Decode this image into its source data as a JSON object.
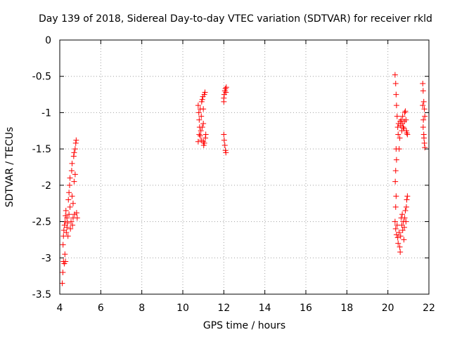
{
  "chart_data": {
    "type": "scatter",
    "title": "Day 139 of 2018, Sidereal Day-to-day VTEC variation (SDTVAR) for receiver rkld",
    "xlabel": "GPS time / hours",
    "ylabel": "SDTVAR / TECUs",
    "xlim": [
      4,
      22
    ],
    "ylim": [
      -3.5,
      0
    ],
    "xticks": [
      "4",
      "6",
      "8",
      "10",
      "12",
      "14",
      "16",
      "18",
      "20",
      "22"
    ],
    "yticks": [
      "0",
      "-0.5",
      "-1",
      "-1.5",
      "-2",
      "-2.5",
      "-3",
      "-3.5"
    ],
    "grid": true,
    "marker": "+",
    "colors": {
      "series": "#ff0000",
      "grid": "#a0a0a0",
      "axis": "#000000"
    },
    "series": [
      {
        "values": [
          [
            4.12,
            -3.35
          ],
          [
            4.15,
            -3.2
          ],
          [
            4.18,
            -3.05
          ],
          [
            4.22,
            -3.08
          ],
          [
            4.25,
            -2.95
          ],
          [
            4.16,
            -2.82
          ],
          [
            4.18,
            -2.7
          ],
          [
            4.2,
            -2.62
          ],
          [
            4.23,
            -2.55
          ],
          [
            4.26,
            -2.5
          ],
          [
            4.28,
            -2.42
          ],
          [
            4.3,
            -2.35
          ],
          [
            4.32,
            -2.65
          ],
          [
            4.35,
            -2.58
          ],
          [
            4.38,
            -2.52
          ],
          [
            4.4,
            -2.7
          ],
          [
            4.42,
            -2.2
          ],
          [
            4.45,
            -2.1
          ],
          [
            4.48,
            -2.0
          ],
          [
            4.5,
            -1.9
          ],
          [
            4.52,
            -2.6
          ],
          [
            4.55,
            -2.5
          ],
          [
            4.58,
            -1.8
          ],
          [
            4.6,
            -1.7
          ],
          [
            4.62,
            -2.55
          ],
          [
            4.65,
            -2.45
          ],
          [
            4.68,
            -1.6
          ],
          [
            4.7,
            -1.55
          ],
          [
            4.72,
            -2.4
          ],
          [
            4.75,
            -1.5
          ],
          [
            4.78,
            -1.42
          ],
          [
            4.8,
            -1.38
          ],
          [
            4.82,
            -2.38
          ],
          [
            4.85,
            -2.45
          ],
          [
            4.7,
            -1.95
          ],
          [
            4.75,
            -1.85
          ],
          [
            4.5,
            -2.3
          ],
          [
            4.45,
            -2.4
          ],
          [
            4.65,
            -2.25
          ],
          [
            4.6,
            -2.15
          ],
          [
            4.28,
            -3.05
          ],
          [
            4.35,
            -2.45
          ],
          [
            10.75,
            -0.9
          ],
          [
            10.78,
            -1.0
          ],
          [
            10.8,
            -1.1
          ],
          [
            10.82,
            -1.2
          ],
          [
            10.85,
            -1.32
          ],
          [
            10.9,
            -1.38
          ],
          [
            10.92,
            -0.85
          ],
          [
            10.95,
            -0.82
          ],
          [
            10.98,
            -0.78
          ],
          [
            11.0,
            -1.4
          ],
          [
            11.02,
            -1.45
          ],
          [
            11.05,
            -0.75
          ],
          [
            11.08,
            -0.72
          ],
          [
            11.1,
            -1.35
          ],
          [
            11.12,
            -1.3
          ],
          [
            10.88,
            -1.25
          ],
          [
            10.95,
            -1.2
          ],
          [
            11.0,
            -0.95
          ],
          [
            10.85,
            -0.95
          ],
          [
            10.8,
            -1.3
          ],
          [
            11.05,
            -1.42
          ],
          [
            10.9,
            -1.05
          ],
          [
            11.0,
            -1.15
          ],
          [
            10.75,
            -1.4
          ],
          [
            12.0,
            -1.3
          ],
          [
            12.02,
            -1.38
          ],
          [
            12.05,
            -1.45
          ],
          [
            12.08,
            -1.52
          ],
          [
            12.1,
            -1.55
          ],
          [
            12.0,
            -0.8
          ],
          [
            12.02,
            -0.75
          ],
          [
            12.05,
            -0.7
          ],
          [
            12.08,
            -0.67
          ],
          [
            12.1,
            -0.72
          ],
          [
            12.12,
            -0.65
          ],
          [
            12.0,
            -0.85
          ],
          [
            20.35,
            -0.48
          ],
          [
            20.38,
            -0.6
          ],
          [
            20.4,
            -0.75
          ],
          [
            20.42,
            -0.9
          ],
          [
            20.45,
            -1.05
          ],
          [
            20.48,
            -1.2
          ],
          [
            20.4,
            -1.5
          ],
          [
            20.42,
            -1.65
          ],
          [
            20.38,
            -1.8
          ],
          [
            20.36,
            -1.95
          ],
          [
            20.4,
            -2.15
          ],
          [
            20.38,
            -2.3
          ],
          [
            20.35,
            -2.5
          ],
          [
            20.38,
            -2.6
          ],
          [
            20.42,
            -2.68
          ],
          [
            20.45,
            -2.55
          ],
          [
            20.48,
            -2.72
          ],
          [
            20.5,
            -2.8
          ],
          [
            20.55,
            -2.65
          ],
          [
            20.58,
            -2.85
          ],
          [
            20.6,
            -2.92
          ],
          [
            20.62,
            -2.7
          ],
          [
            20.65,
            -2.45
          ],
          [
            20.68,
            -2.55
          ],
          [
            20.7,
            -2.4
          ],
          [
            20.72,
            -2.62
          ],
          [
            20.75,
            -2.5
          ],
          [
            20.78,
            -2.75
          ],
          [
            20.8,
            -2.58
          ],
          [
            20.82,
            -2.45
          ],
          [
            20.85,
            -2.35
          ],
          [
            20.88,
            -2.5
          ],
          [
            20.9,
            -2.3
          ],
          [
            20.92,
            -2.2
          ],
          [
            20.95,
            -2.15
          ],
          [
            20.6,
            -1.12
          ],
          [
            20.62,
            -1.18
          ],
          [
            20.65,
            -1.1
          ],
          [
            20.68,
            -1.25
          ],
          [
            20.7,
            -1.15
          ],
          [
            20.72,
            -1.05
          ],
          [
            20.75,
            -1.2
          ],
          [
            20.78,
            -1.22
          ],
          [
            20.8,
            -1.12
          ],
          [
            20.82,
            -1.0
          ],
          [
            20.85,
            -0.98
          ],
          [
            20.88,
            -1.1
          ],
          [
            20.9,
            -1.25
          ],
          [
            20.92,
            -1.28
          ],
          [
            20.95,
            -1.3
          ],
          [
            20.5,
            -1.3
          ],
          [
            20.52,
            -1.15
          ],
          [
            20.55,
            -1.5
          ],
          [
            20.58,
            -1.35
          ],
          [
            21.7,
            -0.6
          ],
          [
            21.72,
            -0.7
          ],
          [
            21.75,
            -0.85
          ],
          [
            21.78,
            -0.95
          ],
          [
            21.8,
            -1.05
          ],
          [
            21.72,
            -1.2
          ],
          [
            21.75,
            -1.3
          ],
          [
            21.78,
            -1.42
          ],
          [
            21.8,
            -1.48
          ],
          [
            21.7,
            -0.9
          ],
          [
            21.73,
            -1.1
          ],
          [
            21.76,
            -1.35
          ]
        ]
      }
    ]
  }
}
